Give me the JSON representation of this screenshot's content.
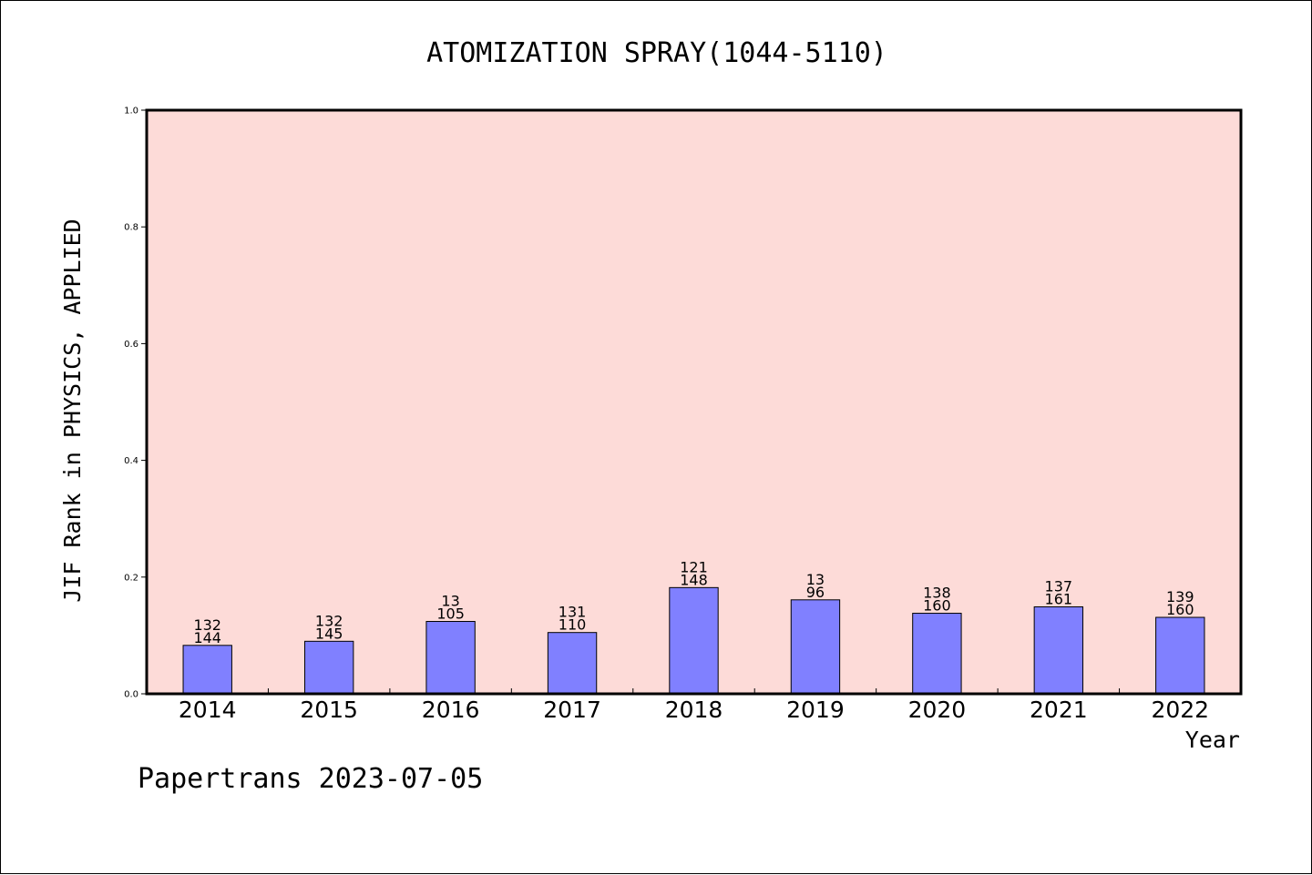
{
  "chart_data": {
    "type": "bar",
    "title": "ATOMIZATION SPRAY(1044-5110)",
    "xlabel": "Year",
    "ylabel": "JIF Rank in PHYSICS, APPLIED",
    "categories": [
      "2014",
      "2015",
      "2016",
      "2017",
      "2018",
      "2019",
      "2020",
      "2021",
      "2022"
    ],
    "values": [
      0.083,
      0.09,
      0.124,
      0.105,
      0.182,
      0.161,
      0.138,
      0.149,
      0.131
    ],
    "labels_top": [
      "132",
      "132",
      "13",
      "131",
      "121",
      "13",
      "138",
      "137",
      "139"
    ],
    "labels_bottom": [
      "144",
      "145",
      "105",
      "110",
      "148",
      "96",
      "160",
      "161",
      "160"
    ],
    "ylim": [
      0.0,
      1.0
    ],
    "yticks": [
      "0.0",
      "0.2",
      "0.4",
      "0.6",
      "0.8",
      "1.0"
    ],
    "grid": false,
    "legend": "none",
    "colors": {
      "plot_background": "#fddbd8",
      "bar_fill": "#8080ff",
      "bar_stroke": "#000000",
      "axis": "#000000"
    }
  },
  "footer": {
    "text": "Papertrans 2023-07-05"
  }
}
